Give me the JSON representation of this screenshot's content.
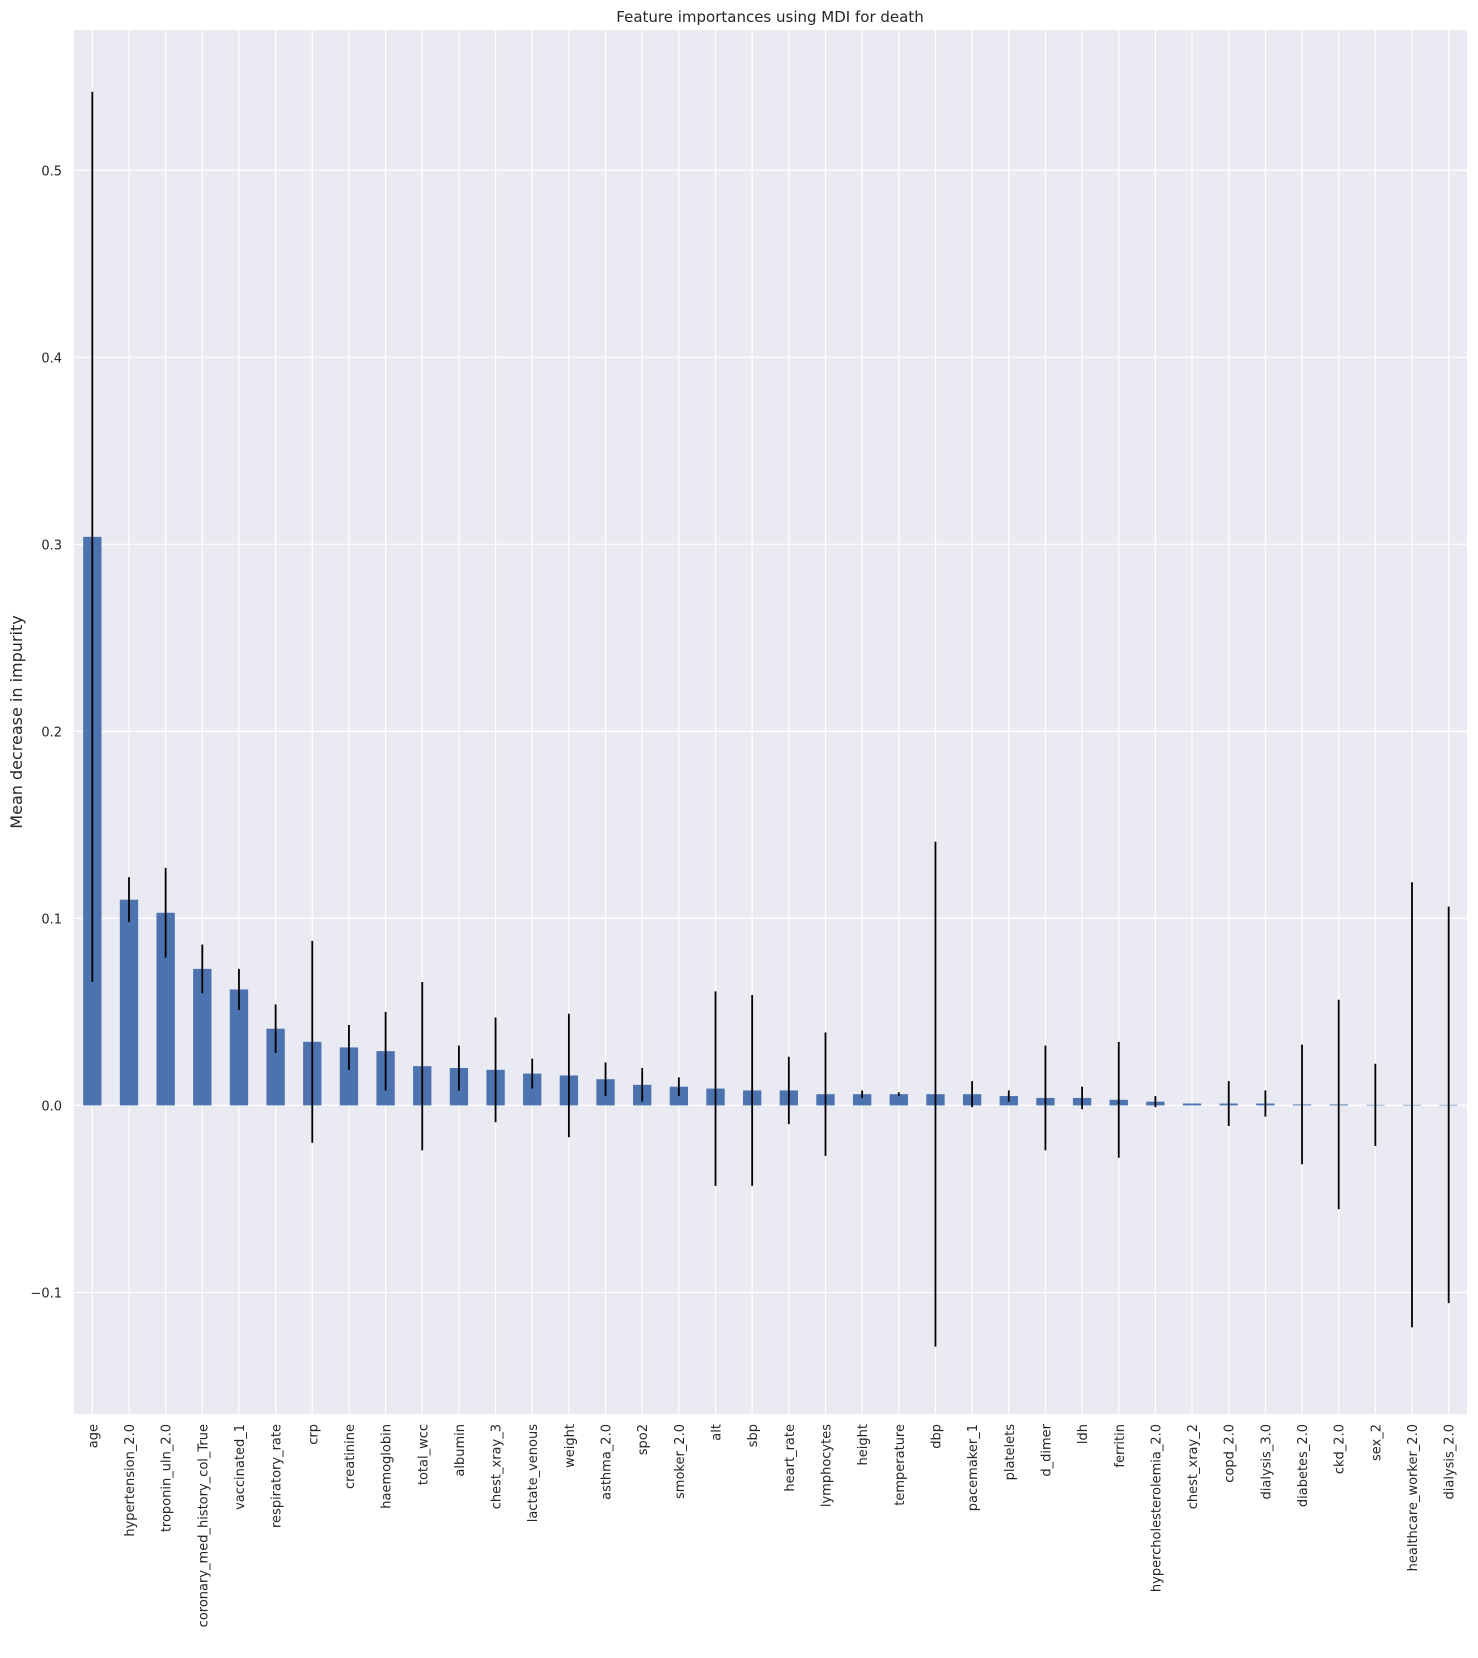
{
  "chart_data": {
    "type": "bar",
    "title": "Feature importances using MDI for death",
    "xlabel": "",
    "ylabel": "Mean decrease in impurity",
    "ylim": [
      -0.165,
      0.575
    ],
    "yticks": [
      -0.1,
      0.0,
      0.1,
      0.2,
      0.3,
      0.4,
      0.5
    ],
    "ytick_labels": [
      "−0.1",
      "0.0",
      "0.1",
      "0.2",
      "0.3",
      "0.4",
      "0.5"
    ],
    "grid": true,
    "legend": "none",
    "bar_color": "#4c72b0",
    "error_color": "#000000",
    "background_color": "#eaeaf2",
    "categories": [
      "age",
      "hypertension_2.0",
      "troponin_uln_2.0",
      "coronary_med_history_col_True",
      "vaccinated_1",
      "respiratory_rate",
      "crp",
      "creatinine",
      "haemoglobin",
      "total_wcc",
      "albumin",
      "chest_xray_3",
      "lactate_venous",
      "weight",
      "asthma_2.0",
      "spo2",
      "smoker_2.0",
      "alt",
      "sbp",
      "heart_rate",
      "lymphocytes",
      "height",
      "temperature",
      "dbp",
      "pacemaker_1",
      "platelets",
      "d_dimer",
      "ldh",
      "ferritin",
      "hypercholesterolemia_2.0",
      "chest_xray_2",
      "copd_2.0",
      "dialysis_3.0",
      "diabetes_2.0",
      "ckd_2.0",
      "sex_2",
      "healthcare_worker_2.0",
      "dialysis_2.0"
    ],
    "values": [
      0.304,
      0.11,
      0.103,
      0.073,
      0.062,
      0.041,
      0.034,
      0.031,
      0.029,
      0.021,
      0.02,
      0.019,
      0.017,
      0.016,
      0.014,
      0.011,
      0.01,
      0.009,
      0.008,
      0.008,
      0.006,
      0.006,
      0.006,
      0.006,
      0.006,
      0.005,
      0.004,
      0.004,
      0.003,
      0.002,
      0.001,
      0.001,
      0.001,
      0.0005,
      0.0005,
      0.0003,
      0.0003,
      0.0003
    ],
    "errors": [
      0.238,
      0.012,
      0.024,
      0.013,
      0.011,
      0.013,
      0.054,
      0.012,
      0.021,
      0.045,
      0.012,
      0.028,
      0.008,
      0.033,
      0.009,
      0.009,
      0.005,
      0.052,
      0.051,
      0.018,
      0.033,
      0.002,
      0.001,
      0.135,
      0.007,
      0.003,
      0.028,
      0.006,
      0.031,
      0.003,
      0.0,
      0.012,
      0.007,
      0.032,
      0.056,
      0.022,
      0.119,
      0.106
    ]
  }
}
